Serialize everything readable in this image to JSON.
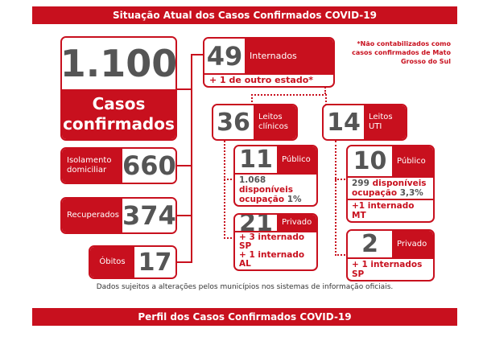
{
  "header": {
    "title": "Situação Atual dos Casos Confirmados COVID-19"
  },
  "casos": {
    "value": "1.100",
    "label_1": "Casos",
    "label_2": "confirmados"
  },
  "isolamento": {
    "label": "Isolamento domiciliar",
    "value": "660"
  },
  "recuperados": {
    "label": "Recuperados",
    "value": "374"
  },
  "obitos": {
    "label": "Óbitos",
    "value": "17"
  },
  "internados": {
    "value": "49",
    "label": "Internados",
    "extra": "+ 1 de outro estado*"
  },
  "note": "*Não contabilizados como casos confirmados de Mato Grosso do Sul",
  "leitos_clinicos": {
    "value": "36",
    "label": "Leitos clínicos",
    "publico": {
      "value": "11",
      "label": "Público",
      "disp_num": "1.068",
      "disp_label": "disponíveis",
      "ocup_label": "ocupação",
      "ocup_value": "1%"
    },
    "privado": {
      "value": "21",
      "label": "Privado",
      "extra_1": "+ 3 internado SP",
      "extra_2": "+ 1 internado AL"
    }
  },
  "leitos_uti": {
    "value": "14",
    "label": "Leitos UTI",
    "publico": {
      "value": "10",
      "label": "Público",
      "disp_num": "299",
      "disp_label": "disponíveis",
      "ocup_label": "ocupação",
      "ocup_value": "3,3%",
      "extra": "+1 internado MT"
    },
    "privado": {
      "value": "2",
      "label": "Privado",
      "extra": "+ 1 internados SP"
    }
  },
  "footnote": "Dados sujeitos a alterações pelos municípios nos sistemas de informação oficiais.",
  "footer": {
    "title": "Perfil dos Casos Confirmados COVID-19"
  },
  "colors": {
    "accent": "#c8101e",
    "number": "#555555"
  }
}
